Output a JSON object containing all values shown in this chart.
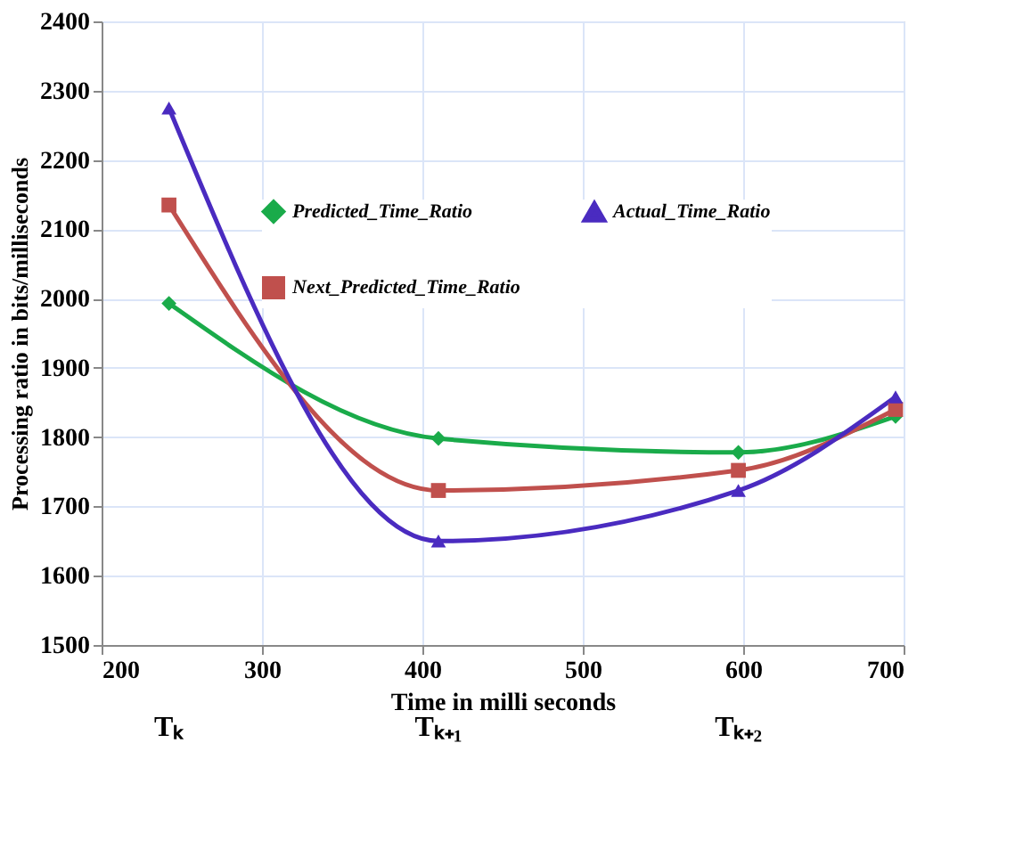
{
  "chart_data": {
    "type": "line",
    "xlabel": "Time in milli seconds",
    "ylabel": "Processing ratio in bits/milliseconds",
    "xlim": [
      200,
      700
    ],
    "xticks": [
      200,
      300,
      400,
      500,
      600,
      700
    ],
    "ylim": [
      1500,
      2400
    ],
    "yticks": [
      1500,
      1600,
      1700,
      1800,
      1900,
      2000,
      2100,
      2200,
      2300,
      2400
    ],
    "grid": true,
    "legend": "top right",
    "line_style": "solid",
    "x": [
      242,
      410,
      597,
      695
    ],
    "series": [
      {
        "name": "Predicted_Time_Ratio",
        "color": "#1aab4a",
        "marker": "diamond",
        "values": [
          1993,
          1798,
          1778,
          1830
        ]
      },
      {
        "name": "Next_Predicted_Time_Ratio",
        "color": "#c0504d",
        "marker": "square",
        "values": [
          2135,
          1723,
          1752,
          1840
        ]
      },
      {
        "name": "Actual_Time_Ratio",
        "color": "#4a2bc0",
        "marker": "triangle",
        "values": [
          2275,
          1650,
          1723,
          1858
        ]
      }
    ],
    "annotations": [
      "Tₖ",
      "Tₖ₊₁",
      "Tₖ₊₂"
    ]
  }
}
